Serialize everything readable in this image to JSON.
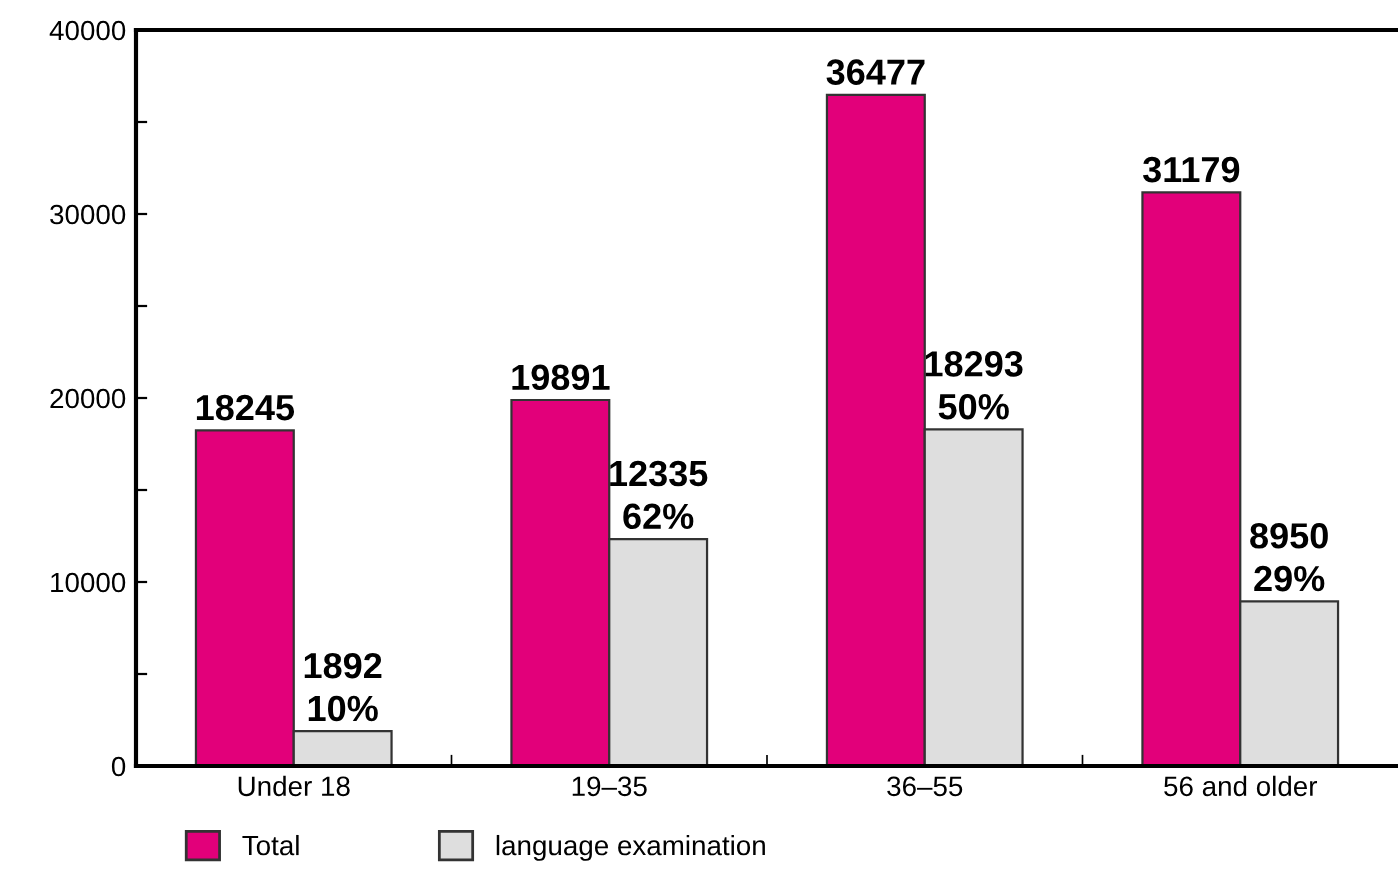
{
  "chart_data": {
    "type": "bar",
    "categories": [
      "Under 18",
      "19–35",
      "36–55",
      "56 and older"
    ],
    "series": [
      {
        "name": "Total",
        "color": "#e2007a",
        "values": [
          18245,
          19891,
          36477,
          31179
        ],
        "value_labels": [
          "18245",
          "19891",
          "36477",
          "31179"
        ]
      },
      {
        "name": "language examination",
        "color": "#dedede",
        "values": [
          1892,
          12335,
          18293,
          8950
        ],
        "value_labels": [
          "1892\n10%",
          "12335\n62%",
          "18293\n50%",
          "8950\n29%"
        ]
      }
    ],
    "ylim": [
      0,
      40000
    ],
    "yticks": [
      0,
      {
        "value": 5000,
        "label": null
      },
      10000,
      {
        "value": 15000,
        "label": null
      },
      20000,
      {
        "value": 25000,
        "label": null
      },
      30000,
      {
        "value": 35000,
        "label": null
      },
      40000
    ],
    "grid": false,
    "legend": "bottom left"
  }
}
